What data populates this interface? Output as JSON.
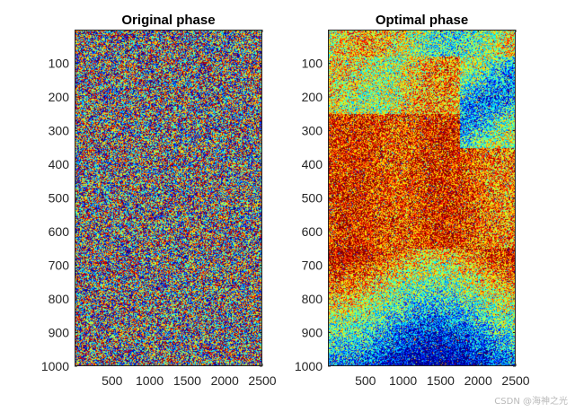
{
  "chart_data": [
    {
      "type": "heatmap",
      "title": "Original phase",
      "xlim": [
        0,
        2500
      ],
      "ylim": [
        0,
        1000
      ],
      "y_reversed": true,
      "xticks": [
        500,
        1000,
        1500,
        2000,
        2500
      ],
      "yticks": [
        100,
        200,
        300,
        400,
        500,
        600,
        700,
        800,
        900,
        1000
      ],
      "colormap": "jet",
      "pattern": "random_noise"
    },
    {
      "type": "heatmap",
      "title": "Optimal phase",
      "xlim": [
        0,
        2500
      ],
      "ylim": [
        0,
        1000
      ],
      "y_reversed": true,
      "xticks": [
        500,
        1000,
        1500,
        2000,
        2500
      ],
      "yticks": [
        100,
        200,
        300,
        400,
        500,
        600,
        700,
        800,
        900,
        1000
      ],
      "colormap": "jet",
      "pattern": "structured_field"
    }
  ],
  "watermark": "CSDN @海神之光",
  "colors": {
    "axis": "#262626",
    "text": "#262626",
    "background": "#ffffff"
  }
}
